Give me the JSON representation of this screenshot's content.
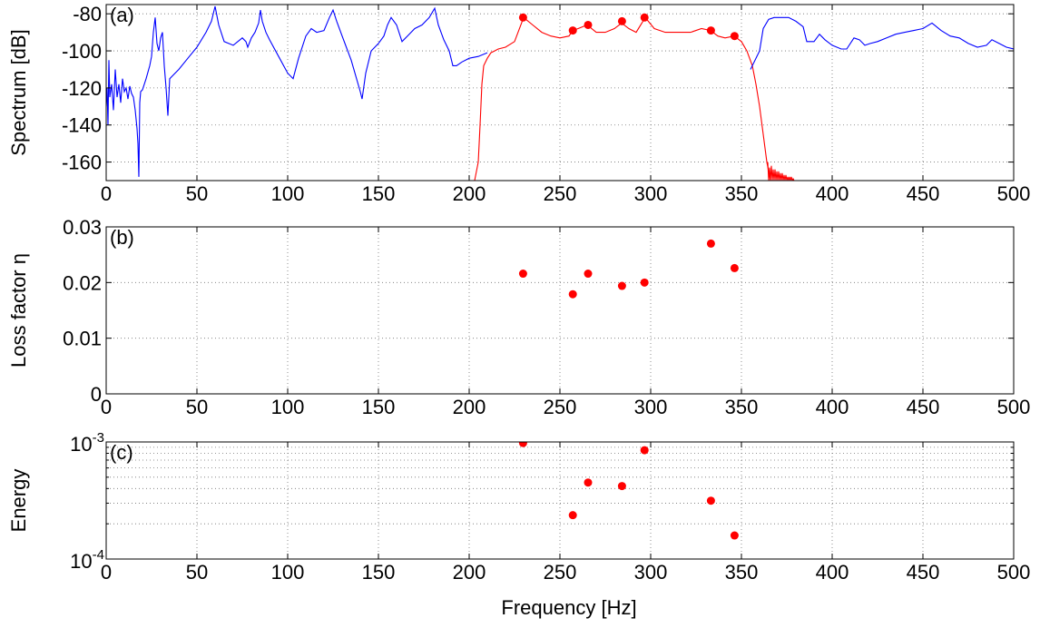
{
  "figure": {
    "xlabel": "Frequency [Hz]"
  },
  "chart_data": [
    {
      "type": "line",
      "panel_label": "(a)",
      "xlabel": "",
      "ylabel": "Spectrum [dB]",
      "xlim": [
        0,
        500
      ],
      "ylim": [
        -170,
        -75
      ],
      "x_ticks": [
        0,
        50,
        100,
        150,
        200,
        250,
        300,
        350,
        400,
        450,
        500
      ],
      "x_tick_labels": [
        "0",
        "50",
        "100",
        "150",
        "200",
        "250",
        "300",
        "350",
        "400",
        "450",
        "500"
      ],
      "y_ticks": [
        -80,
        -100,
        -120,
        -140,
        -160
      ],
      "y_tick_labels": [
        "-80",
        "-100",
        "-120",
        "-140",
        "-160"
      ],
      "grid": true,
      "series": [
        {
          "color": "#0000ff",
          "x": [
            0,
            0.5,
            1,
            1.5,
            2,
            3,
            4,
            5,
            6,
            7,
            8,
            9,
            10,
            11,
            12,
            13,
            14,
            15,
            16,
            17,
            17.5,
            18,
            18.5,
            19,
            20,
            22,
            24,
            25,
            26,
            27,
            28,
            29,
            30,
            31,
            32,
            33,
            34,
            35,
            37,
            40,
            45,
            50,
            55,
            58,
            60,
            62,
            65,
            70,
            75,
            77,
            78,
            80,
            82,
            84,
            85,
            86,
            88,
            90,
            95,
            100,
            103,
            106,
            110,
            113,
            116,
            120,
            123,
            125,
            127,
            130,
            135,
            140,
            141,
            143,
            146,
            150,
            153,
            155,
            157,
            160,
            163,
            166,
            170,
            174,
            178,
            181,
            183,
            186,
            189,
            191,
            193,
            196,
            200,
            205,
            210
          ],
          "y": [
            -130,
            -120,
            -140,
            -105,
            -125,
            -118,
            -132,
            -110,
            -125,
            -118,
            -128,
            -115,
            -122,
            -120,
            -126,
            -119,
            -123,
            -125,
            -132,
            -142,
            -150,
            -168,
            -128,
            -122,
            -121,
            -115,
            -108,
            -103,
            -90,
            -82,
            -96,
            -100,
            -93,
            -90,
            -108,
            -120,
            -135,
            -115,
            -113,
            -110,
            -104,
            -98,
            -90,
            -84,
            -76,
            -86,
            -95,
            -97,
            -93,
            -95,
            -98,
            -93,
            -90,
            -85,
            -78,
            -84,
            -90,
            -94,
            -103,
            -112,
            -115,
            -104,
            -92,
            -88,
            -90,
            -89,
            -82,
            -78,
            -84,
            -92,
            -105,
            -122,
            -126,
            -112,
            -100,
            -96,
            -92,
            -86,
            -82,
            -86,
            -95,
            -92,
            -88,
            -86,
            -82,
            -77,
            -86,
            -94,
            -100,
            -108,
            -108,
            -106,
            -104,
            -103,
            -101
          ]
        },
        {
          "color": "#ff0000",
          "x": [
            203,
            204,
            205,
            206,
            207,
            208,
            210,
            212,
            214,
            216,
            220,
            225,
            230,
            235,
            240,
            245,
            250,
            255,
            257,
            260,
            265,
            270,
            275,
            280,
            284,
            288,
            292,
            297,
            302,
            308,
            315,
            322,
            328,
            333,
            337,
            341,
            346,
            350,
            353,
            356,
            358,
            360,
            362,
            364,
            366
          ],
          "y": [
            -170,
            -165,
            -160,
            -140,
            -118,
            -108,
            -104,
            -101,
            -100,
            -99,
            -98,
            -95,
            -82,
            -86,
            -90,
            -92,
            -93,
            -92,
            -89,
            -88,
            -86,
            -90,
            -90,
            -88,
            -85,
            -88,
            -90,
            -82,
            -88,
            -90,
            -90,
            -90,
            -88,
            -89,
            -92,
            -93,
            -92,
            -95,
            -100,
            -108,
            -118,
            -130,
            -145,
            -160,
            -170
          ]
        },
        {
          "color": "#ff0000",
          "x": [
            364.5,
            365,
            365.5,
            366,
            366.5,
            367,
            367.5,
            368,
            368.5,
            369,
            369.5,
            370,
            370.5,
            371,
            371.5,
            372,
            372.5,
            373,
            373.5,
            374,
            374.5,
            375,
            375.5,
            376,
            376.5,
            377,
            377.5,
            378,
            378.5,
            379
          ],
          "y": [
            -160,
            -170,
            -163,
            -170,
            -162,
            -170,
            -164,
            -170,
            -164,
            -170,
            -165,
            -170,
            -165,
            -170,
            -166,
            -170,
            -166,
            -170,
            -167,
            -170,
            -167,
            -170,
            -168,
            -170,
            -168,
            -170,
            -168,
            -170,
            -169,
            -170
          ]
        },
        {
          "color": "#0000ff",
          "x": [
            355,
            360,
            362,
            365,
            368,
            372,
            376,
            380,
            384,
            386,
            390,
            393,
            396,
            400,
            405,
            408,
            412,
            415,
            418,
            421,
            425,
            430,
            435,
            440,
            445,
            450,
            455,
            460,
            465,
            470,
            475,
            480,
            485,
            488,
            492,
            496,
            500
          ],
          "y": [
            -110,
            -100,
            -88,
            -83,
            -82,
            -82,
            -82,
            -84,
            -87,
            -95,
            -95,
            -91,
            -94,
            -97,
            -99,
            -99,
            -93,
            -94,
            -97,
            -96,
            -95,
            -93,
            -91,
            -90,
            -89,
            -88,
            -85,
            -89,
            -92,
            -93,
            -96,
            -98,
            -97,
            -94,
            -96,
            -98,
            -99
          ]
        }
      ],
      "markers": {
        "color": "#ff0000",
        "x": [
          229.7,
          257.1,
          265.5,
          284.2,
          296.6,
          333.2,
          346.2
        ],
        "y": [
          -82,
          -89,
          -86,
          -84,
          -82,
          -89,
          -92
        ]
      }
    },
    {
      "type": "scatter",
      "panel_label": "(b)",
      "xlabel": "",
      "ylabel": "Loss factor η",
      "xlim": [
        0,
        500
      ],
      "ylim": [
        0,
        0.03
      ],
      "x_ticks": [
        0,
        50,
        100,
        150,
        200,
        250,
        300,
        350,
        400,
        450,
        500
      ],
      "x_tick_labels": [
        "0",
        "50",
        "100",
        "150",
        "200",
        "250",
        "300",
        "350",
        "400",
        "450",
        "500"
      ],
      "y_ticks": [
        0,
        0.01,
        0.02,
        0.03
      ],
      "y_tick_labels": [
        "0",
        "0.01",
        "0.02",
        "0.03"
      ],
      "grid": true,
      "points": {
        "color": "#ff0000",
        "x": [
          229.7,
          257.1,
          265.5,
          284.2,
          296.6,
          333.2,
          346.2
        ],
        "y": [
          0.0216,
          0.0179,
          0.0216,
          0.0194,
          0.02,
          0.027,
          0.0226
        ]
      }
    },
    {
      "type": "scatter",
      "panel_label": "(c)",
      "xlabel": "Frequency [Hz]",
      "ylabel": "Energy",
      "xlim": [
        0,
        500
      ],
      "ylim": [
        0.0001,
        0.001
      ],
      "y_scale": "log",
      "x_ticks": [
        0,
        50,
        100,
        150,
        200,
        250,
        300,
        350,
        400,
        450,
        500
      ],
      "x_tick_labels": [
        "0",
        "50",
        "100",
        "150",
        "200",
        "250",
        "300",
        "350",
        "400",
        "450",
        "500"
      ],
      "y_ticks": [
        0.0001,
        0.001
      ],
      "y_tick_labels": [
        {
          "base": "10",
          "exp": "-4"
        },
        {
          "base": "10",
          "exp": "-3"
        }
      ],
      "grid": true,
      "points": {
        "color": "#ff0000",
        "x": [
          229.7,
          257.1,
          265.5,
          284.2,
          296.6,
          333.2,
          346.2
        ],
        "y": [
          0.00098,
          0.000237,
          0.00045,
          0.00042,
          0.00085,
          0.000315,
          0.000159
        ]
      }
    }
  ]
}
